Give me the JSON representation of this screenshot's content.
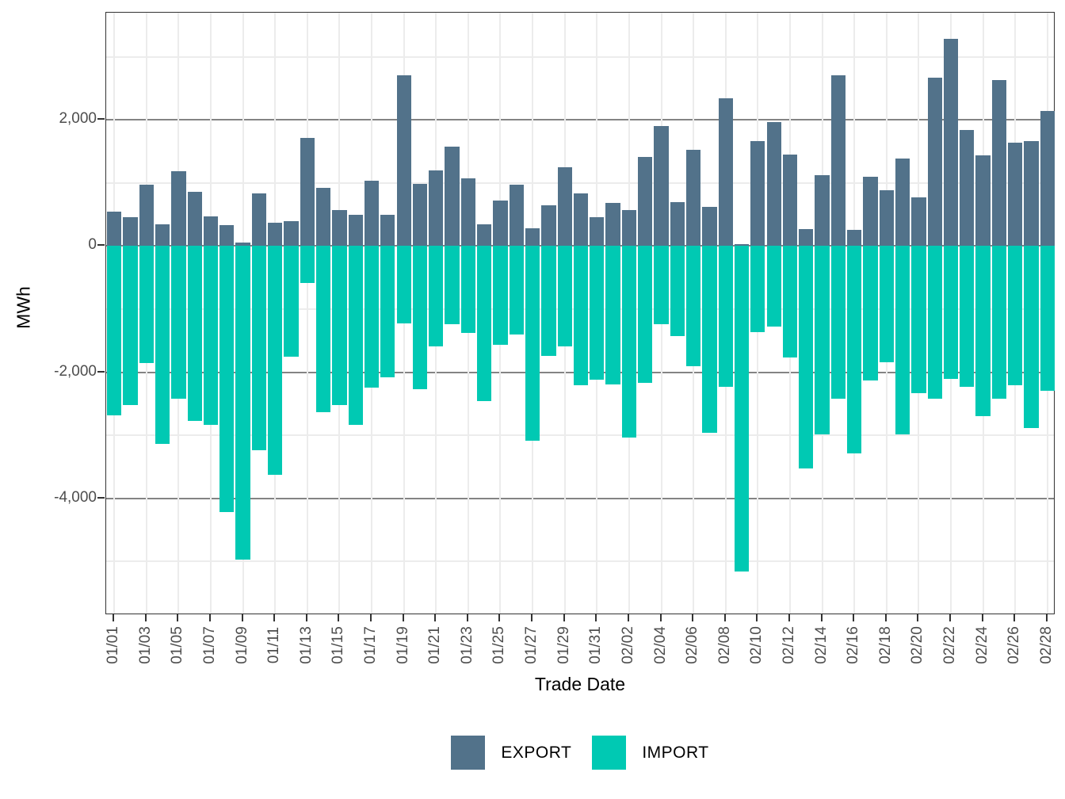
{
  "chart_data": {
    "type": "bar",
    "title": "",
    "xlabel": "Trade Date",
    "ylabel": "MWh",
    "ylim": [
      3700,
      -5850
    ],
    "grid": "on",
    "legend_position": "bottom-center",
    "x_tick_every": 2,
    "y_ticks": [
      {
        "value": 2000,
        "label": "2,000"
      },
      {
        "value": 0,
        "label": "0"
      },
      {
        "value": -2000,
        "label": "-2,000"
      },
      {
        "value": -4000,
        "label": "-4,000"
      }
    ],
    "y_minor_gridlines": [
      3000,
      1000,
      -1000,
      -3000,
      -5000
    ],
    "categories": [
      "01/01",
      "01/02",
      "01/03",
      "01/04",
      "01/05",
      "01/06",
      "01/07",
      "01/08",
      "01/09",
      "01/10",
      "01/11",
      "01/12",
      "01/13",
      "01/14",
      "01/15",
      "01/16",
      "01/17",
      "01/18",
      "01/19",
      "01/20",
      "01/21",
      "01/22",
      "01/23",
      "01/24",
      "01/25",
      "01/26",
      "01/27",
      "01/28",
      "01/29",
      "01/30",
      "01/31",
      "02/01",
      "02/02",
      "02/03",
      "02/04",
      "02/05",
      "02/06",
      "02/07",
      "02/08",
      "02/09",
      "02/10",
      "02/11",
      "02/12",
      "02/13",
      "02/14",
      "02/15",
      "02/16",
      "02/17",
      "02/18",
      "02/19",
      "02/20",
      "02/21",
      "02/22",
      "02/23",
      "02/24",
      "02/25",
      "02/26",
      "02/27",
      "02/28"
    ],
    "series": [
      {
        "name": "EXPORT",
        "color": "#52728A",
        "values": [
          545,
          460,
          970,
          345,
          1190,
          860,
          470,
          330,
          60,
          830,
          370,
          400,
          1710,
          920,
          575,
          490,
          1040,
          500,
          2710,
          985,
          1195,
          1575,
          1075,
          350,
          720,
          975,
          280,
          645,
          1250,
          830,
          460,
          680,
          565,
          1410,
          1905,
          695,
          1525,
          625,
          2340,
          25,
          1665,
          1970,
          1450,
          265,
          1130,
          2705,
          260,
          1095,
          880,
          1385,
          775,
          2665,
          3285,
          1840,
          1440,
          2635,
          1635,
          1665,
          2145
        ]
      },
      {
        "name": "IMPORT",
        "color": "#00C9B3",
        "values": [
          -2680,
          -2525,
          -1855,
          -3140,
          -2415,
          -2775,
          -2840,
          -4220,
          -4970,
          -3240,
          -3620,
          -1750,
          -585,
          -2630,
          -2525,
          -2835,
          -2250,
          -2075,
          -1225,
          -2275,
          -1595,
          -1240,
          -1380,
          -2455,
          -1565,
          -1400,
          -3085,
          -1735,
          -1595,
          -2200,
          -2120,
          -2190,
          -3040,
          -2165,
          -1240,
          -1425,
          -1900,
          -2965,
          -2225,
          -5165,
          -1370,
          -1275,
          -1765,
          -3525,
          -2985,
          -2425,
          -3285,
          -2130,
          -1840,
          -2985,
          -2335,
          -2415,
          -2110,
          -2230,
          -2690,
          -2415,
          -2205,
          -2890,
          -2300
        ]
      }
    ]
  }
}
